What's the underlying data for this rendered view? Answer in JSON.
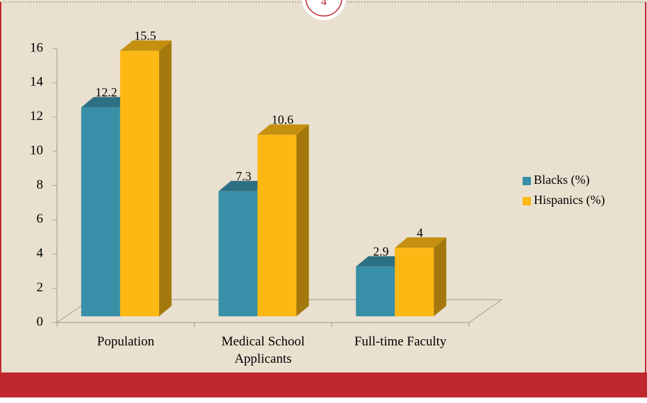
{
  "slide_number": "4",
  "chart_data": {
    "type": "bar3d",
    "categories": [
      "Population",
      "Medical School Applicants",
      "Full-time Faculty"
    ],
    "series": [
      {
        "name": "Blacks (%)",
        "color": "#3a8fa8",
        "values": [
          12.2,
          7.3,
          2.9
        ]
      },
      {
        "name": "Hispanics (%)",
        "color": "#fdb813",
        "values": [
          15.5,
          10.6,
          4
        ]
      }
    ],
    "ylim": [
      0,
      16
    ],
    "yticks": [
      0,
      2,
      4,
      6,
      8,
      10,
      12,
      14,
      16
    ],
    "legend": "right"
  }
}
